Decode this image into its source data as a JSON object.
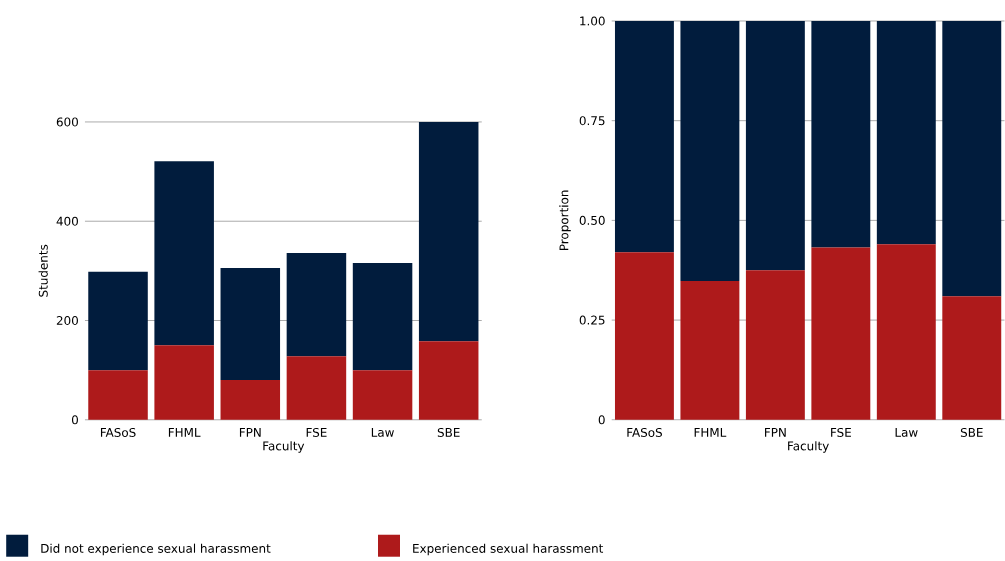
{
  "chart_data": [
    {
      "type": "bar",
      "stacked": true,
      "xlabel": "Faculty",
      "ylabel": "Students",
      "categories": [
        "FASoS",
        "FHML",
        "FPN",
        "FSE",
        "Law",
        "SBE"
      ],
      "series": [
        {
          "name": "Experienced sexual harassment",
          "color": "#ae1a1b",
          "values": [
            100,
            150,
            80,
            128,
            100,
            158
          ]
        },
        {
          "name": "Did not experience sexual harassment",
          "color": "#011c3d",
          "values": [
            198,
            371,
            226,
            208,
            216,
            442
          ]
        }
      ],
      "ylim": [
        0,
        600
      ],
      "yticks": [
        0,
        200,
        400,
        600
      ],
      "grid": "y",
      "legend": "bottom"
    },
    {
      "type": "bar",
      "stacked": true,
      "xlabel": "Faculty",
      "ylabel": "Proportion",
      "categories": [
        "FASoS",
        "FHML",
        "FPN",
        "FSE",
        "Law",
        "SBE"
      ],
      "series": [
        {
          "color": "#ae1a1b",
          "values": [
            0.42,
            0.348,
            0.375,
            0.432,
            0.44,
            0.31
          ]
        },
        {
          "color": "#011c3d",
          "values": [
            0.58,
            0.652,
            0.625,
            0.568,
            0.56,
            0.69
          ]
        }
      ],
      "ylim": [
        0,
        1
      ],
      "yticks": [
        0,
        {
          "value": 0.25,
          "label": "0.25"
        },
        {
          "value": 0.5,
          "label": "0.50"
        },
        {
          "value": 0.75,
          "label": "0.75"
        },
        {
          "value": 1,
          "label": "1.00"
        }
      ],
      "grid": "y"
    }
  ]
}
